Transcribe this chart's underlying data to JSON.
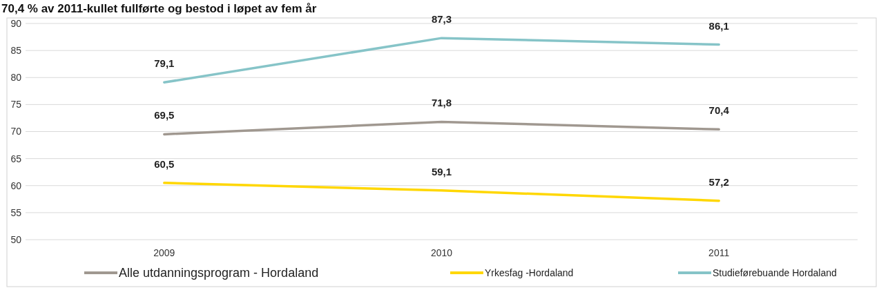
{
  "chart_data": {
    "type": "line",
    "title": "70,4 % av 2011-kullet fullførte og bestod i løpet av fem år",
    "categories": [
      "2009",
      "2010",
      "2011"
    ],
    "ylim": [
      50,
      90
    ],
    "yticks": [
      50,
      55,
      60,
      65,
      70,
      75,
      80,
      85,
      90
    ],
    "grid": "y",
    "legend": "bottom",
    "marker": "none",
    "line_style": "solid",
    "series": [
      {
        "name": "Alle utdanningsprogram - Hordaland",
        "color": "#a09890",
        "values": [
          69.5,
          71.8,
          70.4
        ],
        "value_labels": [
          "69,5",
          "71,8",
          "70,4"
        ]
      },
      {
        "name": "Yrkesfag -Hordaland",
        "color": "#ffd700",
        "values": [
          60.5,
          59.1,
          57.2
        ],
        "value_labels": [
          "60,5",
          "59,1",
          "57,2"
        ]
      },
      {
        "name": "Studieførebuande Hordaland",
        "color": "#86c4c8",
        "values": [
          79.1,
          87.3,
          86.1
        ],
        "value_labels": [
          "79,1",
          "87,3",
          "86,1"
        ]
      }
    ]
  }
}
